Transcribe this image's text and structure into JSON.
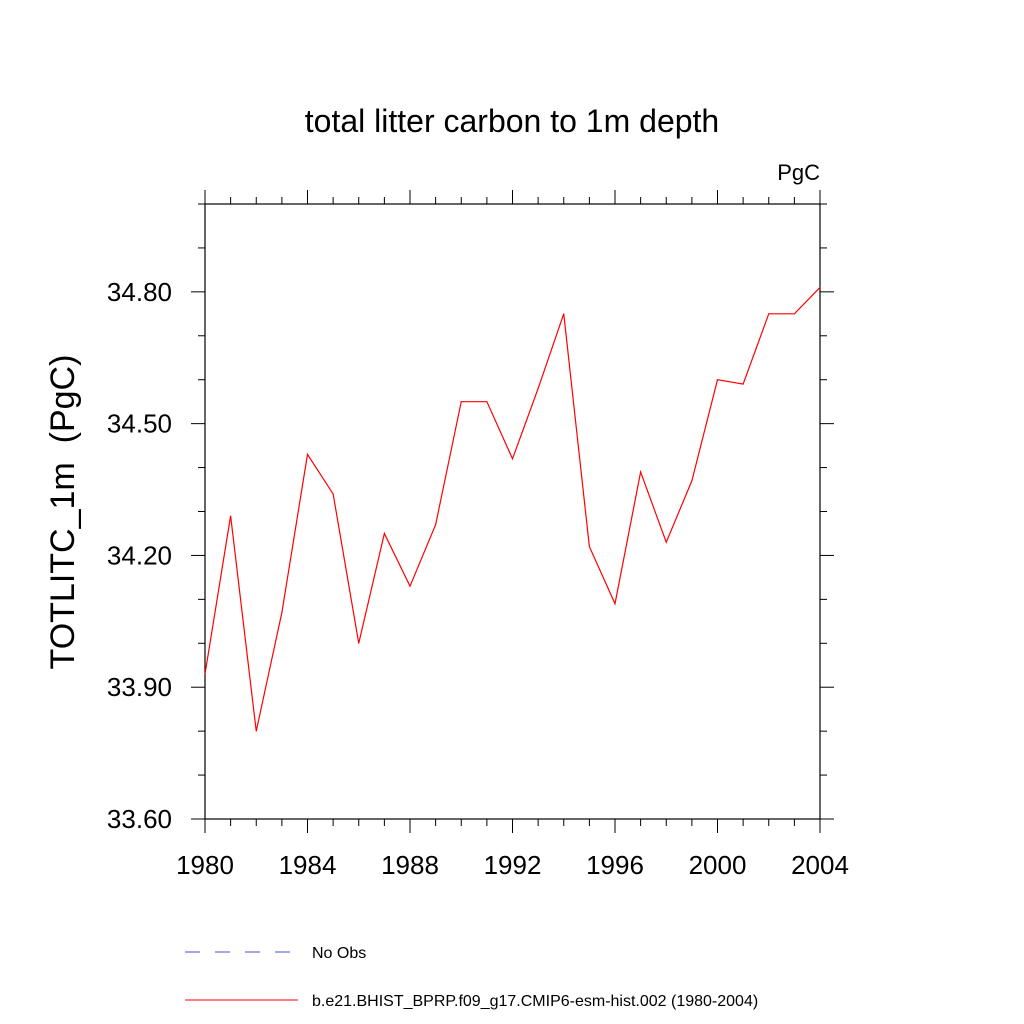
{
  "chart_data": {
    "type": "line",
    "title": "total litter carbon to 1m depth",
    "units_label": "PgC",
    "xlabel": "",
    "ylabel": "TOTLITC_1m  (PgC)",
    "xlim": [
      1980,
      2004
    ],
    "ylim": [
      33.6,
      35.0
    ],
    "xticks": [
      "1980",
      "1984",
      "1988",
      "1992",
      "1996",
      "2000",
      "2004"
    ],
    "yticks": [
      "33.60",
      "33.90",
      "34.20",
      "34.50",
      "34.80"
    ],
    "grid": false,
    "legend_placement": "bottom",
    "series": [
      {
        "name": "No Obs",
        "color": "#4b4bd0",
        "style": "dashed",
        "x": [],
        "values": []
      },
      {
        "name": "b.e21.BHIST_BPRP.f09_g17.CMIP6-esm-hist.002 (1980-2004)",
        "color": "#ff0000",
        "style": "solid",
        "x": [
          1980,
          1981,
          1982,
          1983,
          1984,
          1985,
          1986,
          1987,
          1988,
          1989,
          1990,
          1991,
          1992,
          1993,
          1994,
          1995,
          1996,
          1997,
          1998,
          1999,
          2000,
          2001,
          2002,
          2003,
          2004
        ],
        "values": [
          33.93,
          34.29,
          33.8,
          34.07,
          34.43,
          34.34,
          34.0,
          34.25,
          34.13,
          34.27,
          34.55,
          34.55,
          34.42,
          34.58,
          34.75,
          34.22,
          34.09,
          34.39,
          34.23,
          34.37,
          34.6,
          34.59,
          34.75,
          34.75,
          34.81
        ]
      }
    ]
  }
}
